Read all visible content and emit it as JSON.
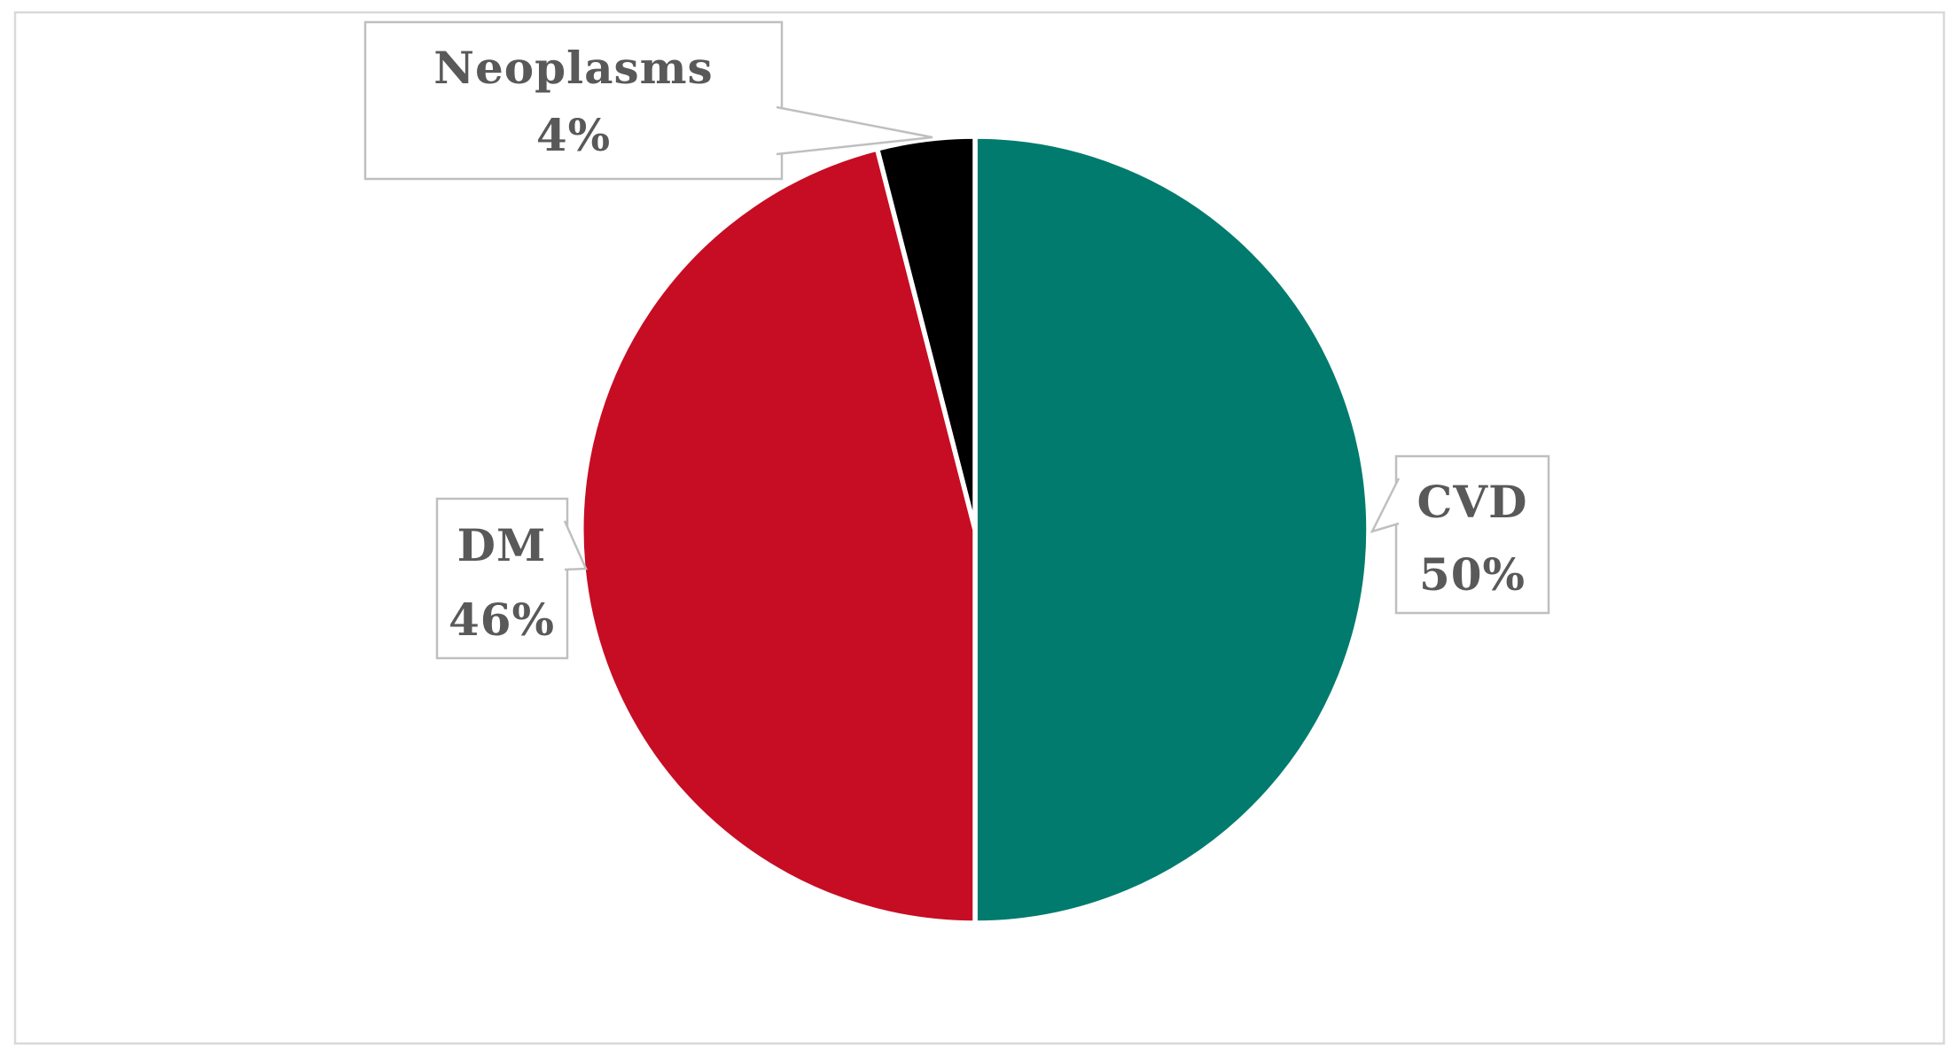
{
  "figure": {
    "description": "Pie chart figure with three slices and rectangular callout data labels",
    "background_color": "#ffffff",
    "frame_border_color": "#d9d9d9"
  },
  "chart_data": {
    "type": "pie",
    "title": "",
    "categories": [
      "CVD",
      "DM",
      "Neoplasms"
    ],
    "values": [
      50,
      46,
      4
    ],
    "unit": "percent",
    "colors": [
      "#007b6e",
      "#c60d24",
      "#000000"
    ],
    "start_angle_deg": 0,
    "direction": "clockwise",
    "legend_position": "none",
    "grid": false,
    "slice_separator_color": "#ffffff",
    "data_label_style": "callout box per slice showing category name and percentage"
  },
  "labels": {
    "cvd": {
      "line1": "CVD",
      "line2": "50%"
    },
    "dm": {
      "line1": "DM",
      "line2": "46%"
    },
    "neoplasms": {
      "line1": "Neoplasms",
      "line2": "4%"
    }
  },
  "label_style": {
    "text_color": "#595959",
    "box_fill": "#ffffff",
    "box_border_color": "#bfbfbf"
  }
}
